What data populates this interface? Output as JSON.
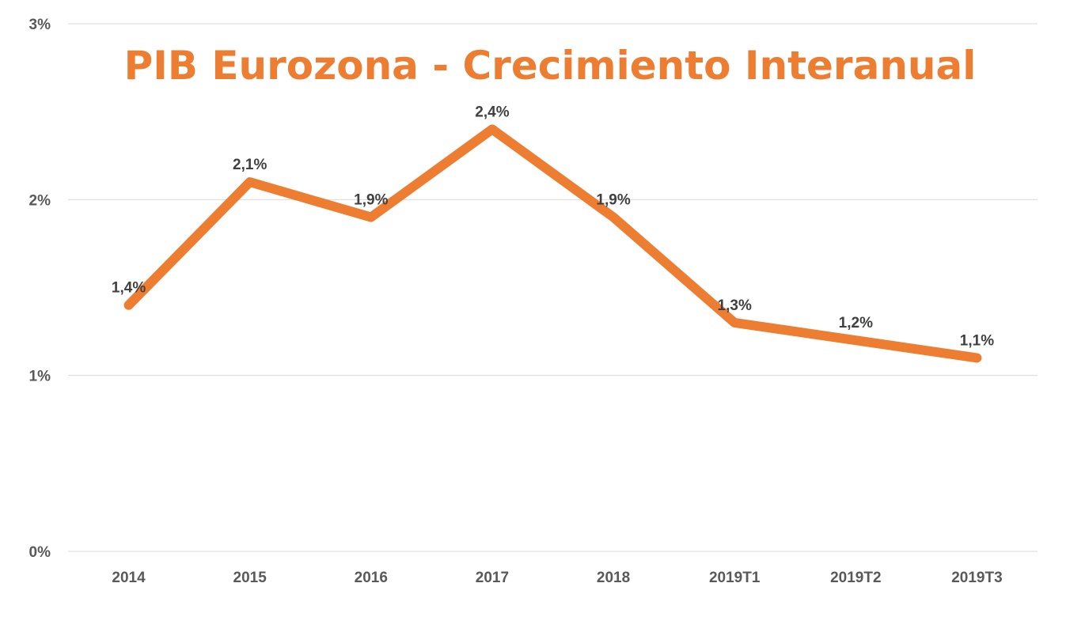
{
  "chart_data": {
    "type": "line",
    "title": "PIB Eurozona - Crecimiento Interanual",
    "categories": [
      "2014",
      "2015",
      "2016",
      "2017",
      "2018",
      "2019T1",
      "2019T2",
      "2019T3"
    ],
    "series": [
      {
        "values": [
          1.4,
          2.1,
          1.9,
          2.4,
          1.9,
          1.3,
          1.2,
          1.1
        ],
        "data_labels": [
          "1,4%",
          "2,1%",
          "1,9%",
          "2,4%",
          "1,9%",
          "1,3%",
          "1,2%",
          "1,1%"
        ]
      }
    ],
    "ylim": [
      0,
      3
    ],
    "yticks": [
      0,
      1,
      2,
      3
    ],
    "ytick_labels": [
      "0%",
      "1%",
      "2%",
      "3%"
    ],
    "xlabel": "",
    "ylabel": "",
    "grid": "horizontal",
    "legend": "none",
    "colors": {
      "line": "#ED7D31",
      "title": "#ED7D31",
      "grid": "#D9D9D9"
    }
  }
}
